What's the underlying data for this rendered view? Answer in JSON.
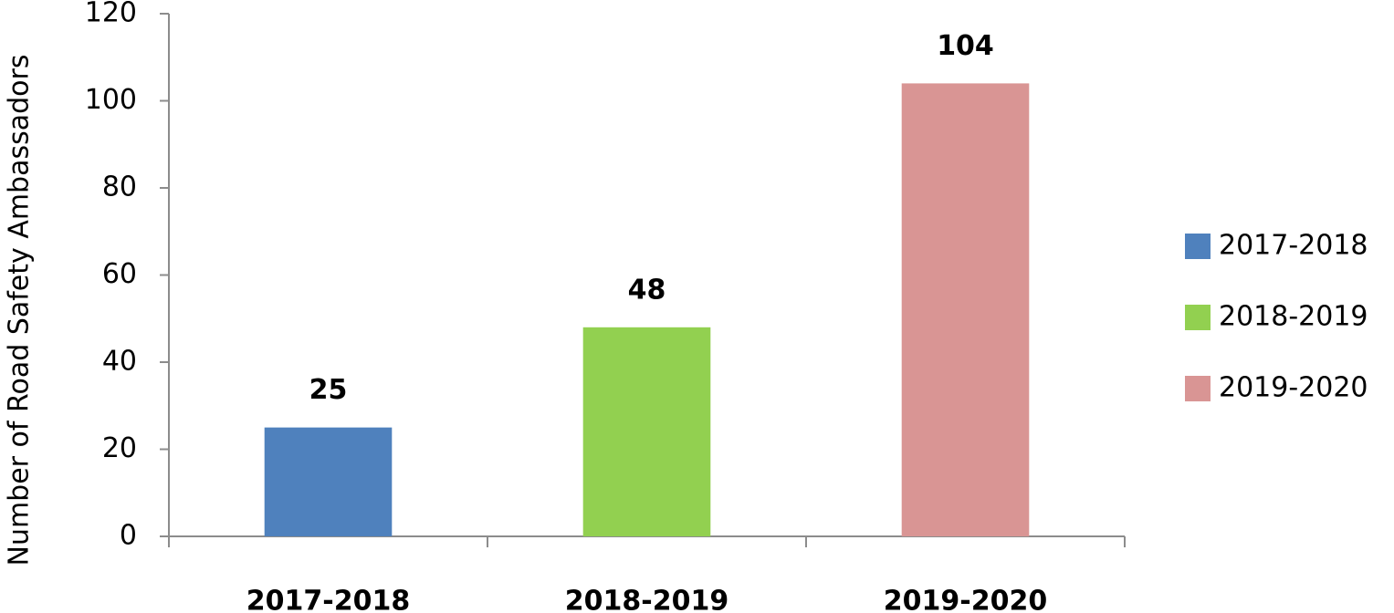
{
  "chart_data": {
    "type": "bar",
    "y_axis_label": "Number of  Road Safety Ambassadors",
    "categories": [
      "2017-2018",
      "2018-2019",
      "2019-2020"
    ],
    "values": [
      25,
      48,
      104
    ],
    "colors": [
      "#4f81bd",
      "#92d050",
      "#d99594"
    ],
    "ylim": [
      0,
      120
    ],
    "yticks": [
      0,
      20,
      40,
      60,
      80,
      100,
      120
    ],
    "grid": false,
    "data_labels": true,
    "legend": "right"
  }
}
